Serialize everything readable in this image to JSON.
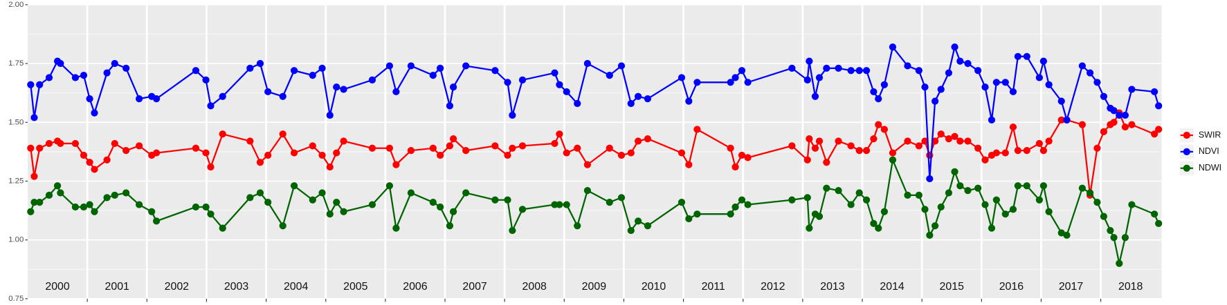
{
  "chart_data": {
    "type": "line",
    "x": [
      2000.05,
      2000.11,
      2000.2,
      2000.36,
      2000.5,
      2000.55,
      2000.8,
      2000.94,
      2001.04,
      2001.12,
      2001.33,
      2001.46,
      2001.65,
      2001.87,
      2002.08,
      2002.16,
      2002.82,
      2002.99,
      2003.07,
      2003.27,
      2003.73,
      2003.9,
      2004.03,
      2004.28,
      2004.47,
      2004.78,
      2004.94,
      2005.07,
      2005.18,
      2005.3,
      2005.78,
      2006.07,
      2006.18,
      2006.43,
      2006.8,
      2006.92,
      2007.08,
      2007.14,
      2007.35,
      2007.84,
      2008.05,
      2008.13,
      2008.3,
      2008.84,
      2008.92,
      2009.04,
      2009.22,
      2009.39,
      2009.76,
      2009.96,
      2010.12,
      2010.24,
      2010.4,
      2010.97,
      2011.09,
      2011.23,
      2011.79,
      2011.87,
      2011.98,
      2012.08,
      2012.82,
      2013.08,
      2013.11,
      2013.21,
      2013.28,
      2013.4,
      2013.6,
      2013.81,
      2013.95,
      2014.07,
      2014.19,
      2014.27,
      2014.37,
      2014.51,
      2014.76,
      2014.95,
      2015.05,
      2015.13,
      2015.22,
      2015.32,
      2015.45,
      2015.55,
      2015.64,
      2015.77,
      2015.94,
      2016.06,
      2016.17,
      2016.25,
      2016.4,
      2016.53,
      2016.61,
      2016.76,
      2016.97,
      2017.04,
      2017.13,
      2017.34,
      2017.43,
      2017.69,
      2017.82,
      2017.94,
      2018.05,
      2018.16,
      2018.22,
      2018.31,
      2018.41,
      2018.52,
      2018.9,
      2018.97
    ],
    "series": [
      {
        "name": "SWIR",
        "color": "#ff0000",
        "values": [
          1.39,
          1.27,
          1.39,
          1.41,
          1.42,
          1.41,
          1.41,
          1.36,
          1.33,
          1.3,
          1.34,
          1.41,
          1.38,
          1.4,
          1.36,
          1.37,
          1.39,
          1.37,
          1.31,
          1.45,
          1.42,
          1.33,
          1.36,
          1.45,
          1.37,
          1.4,
          1.36,
          1.31,
          1.37,
          1.42,
          1.39,
          1.39,
          1.32,
          1.38,
          1.39,
          1.36,
          1.4,
          1.43,
          1.38,
          1.4,
          1.36,
          1.39,
          1.4,
          1.41,
          1.45,
          1.37,
          1.39,
          1.32,
          1.39,
          1.36,
          1.37,
          1.42,
          1.43,
          1.37,
          1.32,
          1.47,
          1.39,
          1.31,
          1.36,
          1.35,
          1.4,
          1.34,
          1.43,
          1.39,
          1.42,
          1.33,
          1.42,
          1.4,
          1.38,
          1.38,
          1.43,
          1.49,
          1.47,
          1.37,
          1.42,
          1.4,
          1.42,
          1.36,
          1.42,
          1.45,
          1.43,
          1.44,
          1.42,
          1.42,
          1.39,
          1.34,
          1.36,
          1.37,
          1.37,
          1.48,
          1.38,
          1.38,
          1.41,
          1.38,
          1.42,
          1.51,
          1.51,
          1.49,
          1.19,
          1.39,
          1.46,
          1.49,
          1.5,
          1.54,
          1.48,
          1.49,
          1.45,
          1.47
        ]
      },
      {
        "name": "NDVI",
        "color": "#0000ff",
        "values": [
          1.66,
          1.52,
          1.66,
          1.69,
          1.76,
          1.75,
          1.69,
          1.7,
          1.6,
          1.54,
          1.71,
          1.75,
          1.73,
          1.6,
          1.61,
          1.6,
          1.72,
          1.68,
          1.57,
          1.61,
          1.73,
          1.75,
          1.63,
          1.61,
          1.72,
          1.7,
          1.73,
          1.53,
          1.65,
          1.64,
          1.68,
          1.74,
          1.63,
          1.74,
          1.7,
          1.73,
          1.57,
          1.65,
          1.74,
          1.72,
          1.67,
          1.53,
          1.68,
          1.71,
          1.66,
          1.63,
          1.58,
          1.75,
          1.7,
          1.74,
          1.58,
          1.61,
          1.6,
          1.69,
          1.59,
          1.67,
          1.67,
          1.69,
          1.72,
          1.67,
          1.73,
          1.68,
          1.76,
          1.61,
          1.69,
          1.73,
          1.73,
          1.72,
          1.72,
          1.72,
          1.63,
          1.6,
          1.66,
          1.82,
          1.74,
          1.72,
          1.65,
          1.26,
          1.59,
          1.64,
          1.71,
          1.82,
          1.76,
          1.75,
          1.72,
          1.65,
          1.51,
          1.67,
          1.67,
          1.63,
          1.78,
          1.78,
          1.69,
          1.76,
          1.66,
          1.59,
          1.51,
          1.74,
          1.71,
          1.67,
          1.61,
          1.56,
          1.55,
          1.53,
          1.53,
          1.64,
          1.63,
          1.57
        ]
      },
      {
        "name": "NDWI",
        "color": "#006400",
        "values": [
          1.12,
          1.16,
          1.16,
          1.19,
          1.23,
          1.2,
          1.14,
          1.14,
          1.15,
          1.12,
          1.18,
          1.19,
          1.2,
          1.15,
          1.12,
          1.08,
          1.14,
          1.14,
          1.11,
          1.05,
          1.18,
          1.2,
          1.16,
          1.06,
          1.23,
          1.17,
          1.2,
          1.11,
          1.16,
          1.12,
          1.15,
          1.23,
          1.05,
          1.2,
          1.16,
          1.14,
          1.06,
          1.12,
          1.2,
          1.17,
          1.17,
          1.04,
          1.13,
          1.15,
          1.15,
          1.15,
          1.06,
          1.21,
          1.16,
          1.18,
          1.04,
          1.08,
          1.06,
          1.16,
          1.09,
          1.11,
          1.11,
          1.14,
          1.17,
          1.15,
          1.17,
          1.18,
          1.05,
          1.11,
          1.1,
          1.22,
          1.21,
          1.15,
          1.2,
          1.17,
          1.07,
          1.05,
          1.12,
          1.34,
          1.19,
          1.19,
          1.13,
          1.02,
          1.06,
          1.14,
          1.2,
          1.29,
          1.23,
          1.21,
          1.22,
          1.15,
          1.05,
          1.17,
          1.11,
          1.13,
          1.23,
          1.23,
          1.17,
          1.23,
          1.12,
          1.03,
          1.02,
          1.22,
          1.2,
          1.16,
          1.1,
          1.04,
          1.01,
          0.9,
          1.01,
          1.15,
          1.11,
          1.07
        ]
      }
    ],
    "xlim": [
      2000,
      2019.02
    ],
    "xticks": [
      2001,
      2002,
      2003,
      2004,
      2005,
      2006,
      2007,
      2008,
      2009,
      2010,
      2011,
      2012,
      2013,
      2014,
      2015,
      2016,
      2017,
      2018
    ],
    "year_labels": [
      2000,
      2001,
      2002,
      2003,
      2004,
      2005,
      2006,
      2007,
      2008,
      2009,
      2010,
      2011,
      2012,
      2013,
      2014,
      2015,
      2016,
      2017,
      2018
    ],
    "ylim": [
      0.75,
      2.0
    ],
    "yticks": [
      0.75,
      {
        "value": 1,
        "label": "1.00"
      },
      1.25,
      {
        "value": 1.5,
        "label": "1.50"
      },
      1.75,
      {
        "value": 2,
        "label": "2.00"
      }
    ],
    "grid": true,
    "legend": "right"
  }
}
